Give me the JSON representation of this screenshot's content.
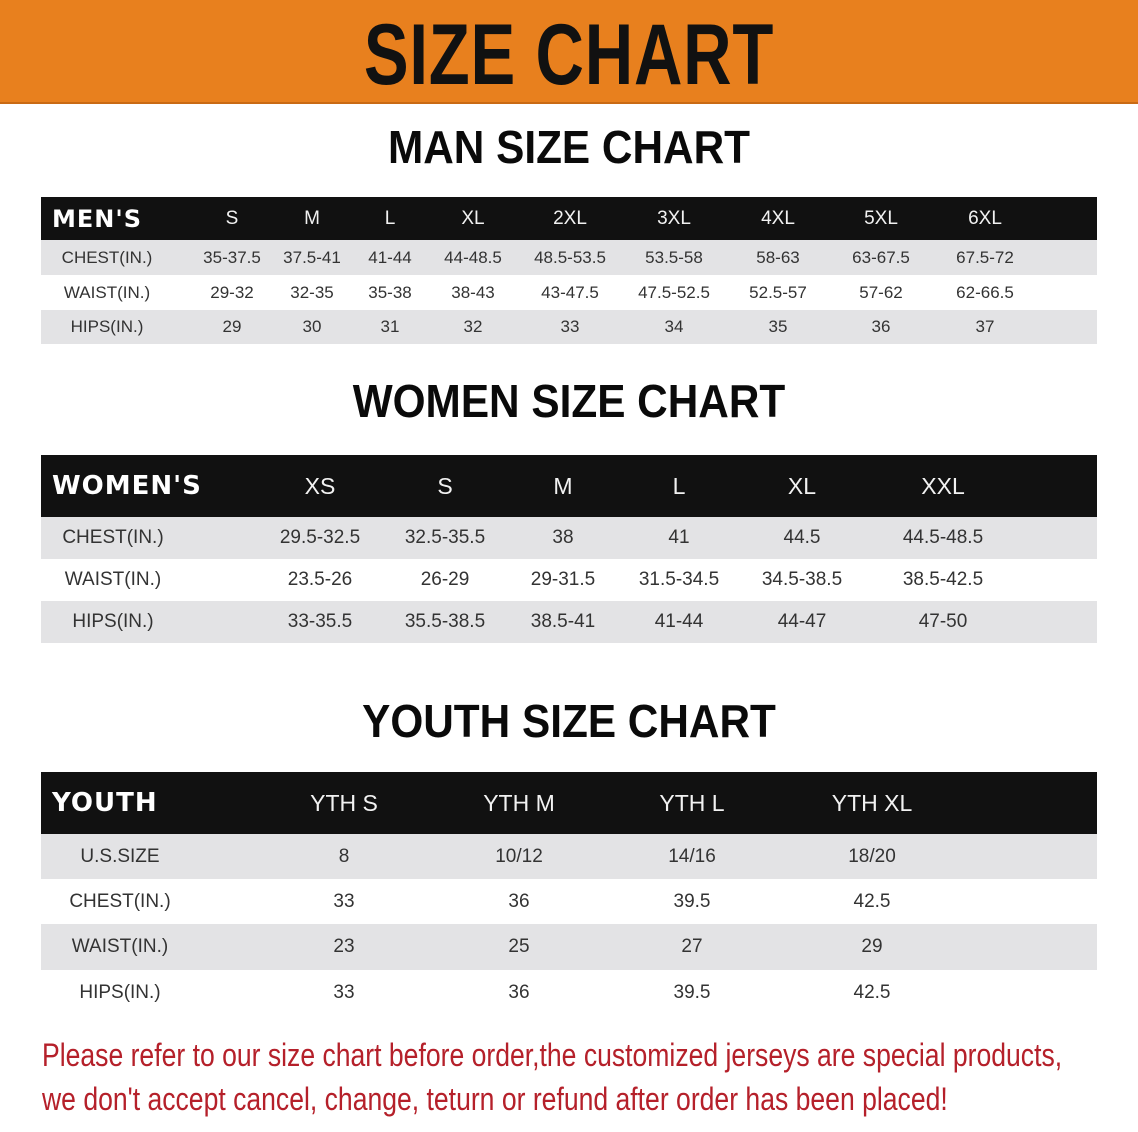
{
  "title": "SIZE CHART",
  "colors": {
    "banner": "#E8801E",
    "note": "#b5202a",
    "header_row": "#111111",
    "stripe": "#e3e3e5"
  },
  "tables": [
    {
      "title": "MAN SIZE CHART",
      "header": "MEN'S",
      "sizes": [
        "S",
        "M",
        "L",
        "XL",
        "2XL",
        "3XL",
        "4XL",
        "5XL",
        "6XL"
      ],
      "rows": [
        {
          "label": "CHEST(IN.)",
          "values": [
            "35-37.5",
            "37.5-41",
            "41-44",
            "44-48.5",
            "48.5-53.5",
            "53.5-58",
            "58-63",
            "63-67.5",
            "67.5-72"
          ]
        },
        {
          "label": "WAIST(IN.)",
          "values": [
            "29-32",
            "32-35",
            "35-38",
            "38-43",
            "43-47.5",
            "47.5-52.5",
            "52.5-57",
            "57-62",
            "62-66.5"
          ]
        },
        {
          "label": "HIPS(IN.)",
          "values": [
            "29",
            "30",
            "31",
            "32",
            "33",
            "34",
            "35",
            "36",
            "37"
          ]
        }
      ]
    },
    {
      "title": "WOMEN SIZE CHART",
      "header": "WOMEN'S",
      "sizes": [
        "XS",
        "S",
        "M",
        "L",
        "XL",
        "XXL"
      ],
      "rows": [
        {
          "label": "CHEST(IN.)",
          "values": [
            "29.5-32.5",
            "32.5-35.5",
            "38",
            "41",
            "44.5",
            "44.5-48.5"
          ]
        },
        {
          "label": "WAIST(IN.)",
          "values": [
            "23.5-26",
            "26-29",
            "29-31.5",
            "31.5-34.5",
            "34.5-38.5",
            "38.5-42.5"
          ]
        },
        {
          "label": "HIPS(IN.)",
          "values": [
            "33-35.5",
            "35.5-38.5",
            "38.5-41",
            "41-44",
            "44-47",
            "47-50"
          ]
        }
      ]
    },
    {
      "title": "YOUTH SIZE CHART",
      "header": "YOUTH",
      "sizes": [
        "YTH S",
        "YTH M",
        "YTH L",
        "YTH XL"
      ],
      "rows": [
        {
          "label": "U.S.SIZE",
          "values": [
            "8",
            "10/12",
            "14/16",
            "18/20"
          ]
        },
        {
          "label": "CHEST(IN.)",
          "values": [
            "33",
            "36",
            "39.5",
            "42.5"
          ]
        },
        {
          "label": "WAIST(IN.)",
          "values": [
            "23",
            "25",
            "27",
            "29"
          ]
        },
        {
          "label": "HIPS(IN.)",
          "values": [
            "33",
            "36",
            "39.5",
            "42.5"
          ]
        }
      ]
    }
  ],
  "note": {
    "line1": "Please refer to our size chart before order,the customized jerseys are special products,",
    "line2": "we don't accept cancel, change, teturn or refund after order has been placed!"
  }
}
